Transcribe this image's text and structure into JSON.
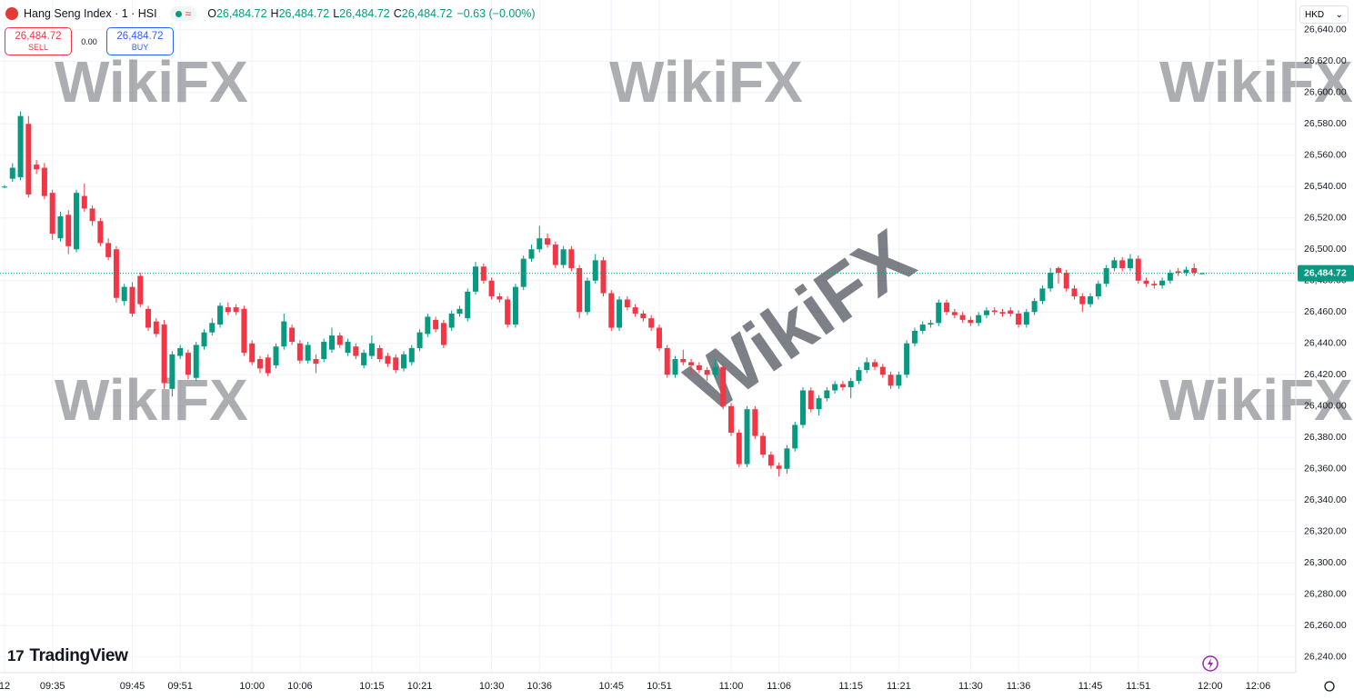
{
  "header": {
    "title": "Hang Seng Index · 1 · HSI",
    "open_key": "O",
    "open": "26,484.72",
    "high_key": "H",
    "high": "26,484.72",
    "low_key": "L",
    "low": "26,484.72",
    "close_key": "C",
    "close": "26,484.72",
    "change": "−0.63 (−0.00%)",
    "sell_price": "26,484.72",
    "sell_label": "SELL",
    "spread": "0.00",
    "buy_price": "26,484.72",
    "buy_label": "BUY",
    "currency": "HKD",
    "brand": "TradingView",
    "watermark": "WikiFX"
  },
  "chart_data": {
    "type": "candlestick",
    "categories": [
      "12",
      null,
      null,
      null,
      null,
      null,
      "09:35",
      null,
      null,
      null,
      null,
      null,
      null,
      null,
      null,
      null,
      "09:45",
      null,
      null,
      null,
      null,
      null,
      "09:51",
      null,
      null,
      null,
      null,
      null,
      null,
      null,
      null,
      "10:00",
      null,
      null,
      null,
      null,
      null,
      "10:06",
      null,
      null,
      null,
      null,
      null,
      null,
      null,
      null,
      "10:15",
      null,
      null,
      null,
      null,
      null,
      "10:21",
      null,
      null,
      null,
      null,
      null,
      null,
      null,
      null,
      "10:30",
      null,
      null,
      null,
      null,
      null,
      "10:36",
      null,
      null,
      null,
      null,
      null,
      null,
      null,
      null,
      "10:45",
      null,
      null,
      null,
      null,
      null,
      "10:51",
      null,
      null,
      null,
      null,
      null,
      null,
      null,
      null,
      "11:00",
      null,
      null,
      null,
      null,
      null,
      "11:06",
      null,
      null,
      null,
      null,
      null,
      null,
      null,
      null,
      "11:15",
      null,
      null,
      null,
      null,
      null,
      "11:21",
      null,
      null,
      null,
      null,
      null,
      null,
      null,
      null,
      "11:30",
      null,
      null,
      null,
      null,
      null,
      "11:36",
      null,
      null,
      null,
      null,
      null,
      null,
      null,
      null,
      "11:45",
      null,
      null,
      null,
      null,
      null,
      "11:51",
      null,
      null,
      null,
      null,
      null,
      null,
      null,
      null,
      "12:00",
      null,
      null,
      null,
      null,
      null,
      "12:06"
    ],
    "open": [
      26540,
      26545,
      26546,
      26580,
      26554,
      26552,
      26536,
      26507,
      26522,
      26500,
      26534,
      26526,
      26518,
      26504,
      26500,
      26467,
      26476,
      26483,
      26462,
      26454,
      26452,
      26411,
      26432,
      26434,
      26418,
      26438,
      26447,
      26452,
      26463,
      26463,
      26462,
      26440,
      26430,
      26431,
      26426,
      26438,
      26450,
      26440,
      26429,
      26430,
      26430,
      26436,
      26445,
      26434,
      26438,
      26426,
      26432,
      26437,
      26432,
      26431,
      26424,
      26428,
      26437,
      26446,
      26455,
      26453,
      26450,
      26459,
      26456,
      26473,
      26489,
      26480,
      26470,
      26468,
      26452,
      26476,
      26494,
      26500,
      26507,
      26503,
      26490,
      26500,
      26488,
      26460,
      26480,
      26493,
      26472,
      26450,
      26468,
      26463,
      26459,
      26456,
      26450,
      26437,
      26420,
      26430,
      26428,
      26426,
      26423,
      26420,
      26425,
      26400,
      26383,
      26363,
      26398,
      26381,
      26369,
      26362,
      26360,
      26373,
      26388,
      26410,
      26398,
      26405,
      26410,
      26414,
      26412,
      26416,
      26423,
      26428,
      26425,
      26420,
      26413,
      26420,
      26440,
      26448,
      26452,
      26453,
      26466,
      26460,
      26458,
      26455,
      26453,
      26458,
      26461,
      26460,
      26461,
      26459,
      26452,
      26460,
      26467,
      26475,
      26488,
      26485,
      26475,
      26470,
      26465,
      26470,
      26478,
      26488,
      26493,
      26488,
      26494,
      26480,
      26478,
      26477,
      26480,
      26486,
      26485,
      26488,
      26484.72,
      null,
      null,
      null,
      null,
      null,
      null,
      null
    ],
    "high": [
      26541,
      26555,
      26588,
      26585,
      26557,
      26555,
      26538,
      26524,
      26525,
      26538,
      26542,
      26528,
      26520,
      26507,
      26502,
      26478,
      26479,
      26485,
      26464,
      26456,
      26455,
      26435,
      26439,
      26436,
      26441,
      26449,
      26456,
      26466,
      26466,
      26465,
      26464,
      26442,
      26432,
      26433,
      26440,
      26459,
      26452,
      26442,
      26441,
      26433,
      26443,
      26450,
      26447,
      26443,
      26440,
      26436,
      26445,
      26439,
      26434,
      26433,
      26435,
      26439,
      26449,
      26459,
      26457,
      26455,
      26461,
      26464,
      26475,
      26492,
      26491,
      26482,
      26472,
      26470,
      26478,
      26496,
      26503,
      26515,
      26510,
      26505,
      26502,
      26502,
      26490,
      26482,
      26497,
      26495,
      26474,
      26470,
      26470,
      26465,
      26461,
      26458,
      26452,
      26439,
      26432,
      26436,
      26430,
      26428,
      26425,
      26430,
      26427,
      26402,
      26385,
      26400,
      26400,
      26383,
      26371,
      26364,
      26375,
      26390,
      26412,
      26412,
      26407,
      26412,
      26416,
      26416,
      26418,
      26425,
      26431,
      26430,
      26427,
      26422,
      26422,
      26442,
      26450,
      26454,
      26455,
      26468,
      26468,
      26462,
      26460,
      26457,
      26460,
      26463,
      26463,
      26462,
      26463,
      26461,
      26462,
      26469,
      26477,
      26488,
      26489,
      26487,
      26477,
      26472,
      26472,
      26480,
      26490,
      26495,
      26495,
      26497,
      26496,
      26482,
      26480,
      26482,
      26487,
      26488,
      26489,
      26491,
      26485,
      null,
      null,
      null,
      null,
      null,
      null,
      null
    ],
    "low": [
      26539,
      26543,
      26544,
      26533,
      26548,
      26532,
      26506,
      26505,
      26497,
      26498,
      26524,
      26515,
      26502,
      26493,
      26466,
      26464,
      26457,
      26463,
      26448,
      26444,
      26411,
      26406,
      26430,
      26417,
      26416,
      26436,
      26445,
      26450,
      26458,
      26458,
      26432,
      26426,
      26421,
      26419,
      26424,
      26436,
      26439,
      26427,
      26427,
      26421,
      26428,
      26434,
      26437,
      26432,
      26430,
      26424,
      26430,
      26428,
      26425,
      26421,
      26422,
      26426,
      26435,
      26444,
      26447,
      26437,
      26448,
      26457,
      26454,
      26471,
      26478,
      26468,
      26466,
      26450,
      26450,
      26474,
      26492,
      26498,
      26501,
      26488,
      26488,
      26486,
      26456,
      26458,
      26478,
      26470,
      26448,
      26448,
      26461,
      26457,
      26454,
      26448,
      26435,
      26418,
      26418,
      26426,
      26420,
      26421,
      26416,
      26418,
      26398,
      26381,
      26361,
      26361,
      26379,
      26367,
      26360,
      26355,
      26357,
      26371,
      26386,
      26396,
      26394,
      26403,
      26408,
      26410,
      26405,
      26414,
      26421,
      26423,
      26418,
      26411,
      26411,
      26418,
      26438,
      26446,
      26450,
      26451,
      26458,
      26456,
      26453,
      26451,
      26451,
      26456,
      26458,
      26457,
      26457,
      26450,
      26450,
      26458,
      26465,
      26473,
      26478,
      26473,
      26468,
      26460,
      26463,
      26468,
      26476,
      26486,
      26486,
      26486,
      26478,
      26476,
      26475,
      26475,
      26478,
      26483,
      26483,
      26483,
      26484,
      null,
      null,
      null,
      null,
      null,
      null,
      null
    ],
    "close": [
      26540,
      26552,
      26585,
      26535,
      26551,
      26534,
      26510,
      26521,
      26502,
      26536,
      26526,
      26518,
      26504,
      26495,
      26469,
      26476,
      26459,
      26465,
      26450,
      26446,
      26415,
      26433,
      26437,
      26420,
      26439,
      26447,
      26453,
      26464,
      26460,
      26460,
      26434,
      26428,
      26424,
      26421,
      26438,
      26454,
      26441,
      26429,
      26439,
      26427,
      26441,
      26445,
      26439,
      26441,
      26432,
      26434,
      26440,
      26430,
      26427,
      26423,
      26433,
      26437,
      26447,
      26457,
      26449,
      26439,
      26459,
      26462,
      26473,
      26489,
      26480,
      26470,
      26468,
      26452,
      26476,
      26494,
      26500,
      26507,
      26503,
      26490,
      26500,
      26488,
      26460,
      26480,
      26493,
      26472,
      26450,
      26468,
      26463,
      26459,
      26456,
      26450,
      26437,
      26420,
      26430,
      26428,
      26426,
      26423,
      26420,
      26425,
      26400,
      26383,
      26363,
      26398,
      26381,
      26369,
      26362,
      26360,
      26373,
      26388,
      26410,
      26398,
      26405,
      26410,
      26414,
      26412,
      26416,
      26423,
      26428,
      26425,
      26420,
      26413,
      26420,
      26440,
      26448,
      26452,
      26453,
      26466,
      26460,
      26458,
      26455,
      26453,
      26458,
      26461,
      26460,
      26459,
      26459,
      26452,
      26460,
      26467,
      26475,
      26485,
      26485,
      26475,
      26470,
      26465,
      26470,
      26478,
      26488,
      26493,
      26488,
      26494,
      26480,
      26478,
      26477,
      26480,
      26485,
      26485,
      26487,
      26485,
      26484.72,
      null,
      null,
      null,
      null,
      null,
      null,
      null
    ],
    "up_color": "#089981",
    "down_color": "#f23645",
    "last_price": {
      "value": 26484.72,
      "label": "26,484.72"
    },
    "ylim": [
      26230,
      26659
    ],
    "yticks": [
      {
        "value": 26240,
        "label": "26,240.00"
      },
      {
        "value": 26260,
        "label": "26,260.00"
      },
      {
        "value": 26280,
        "label": "26,280.00"
      },
      {
        "value": 26300,
        "label": "26,300.00"
      },
      {
        "value": 26320,
        "label": "26,320.00"
      },
      {
        "value": 26340,
        "label": "26,340.00"
      },
      {
        "value": 26360,
        "label": "26,360.00"
      },
      {
        "value": 26380,
        "label": "26,380.00"
      },
      {
        "value": 26400,
        "label": "26,400.00"
      },
      {
        "value": 26420,
        "label": "26,420.00"
      },
      {
        "value": 26440,
        "label": "26,440.00"
      },
      {
        "value": 26460,
        "label": "26,460.00"
      },
      {
        "value": 26480,
        "label": "26,480.00"
      },
      {
        "value": 26500,
        "label": "26,500.00"
      },
      {
        "value": 26520,
        "label": "26,520.00"
      },
      {
        "value": 26540,
        "label": "26,540.00"
      },
      {
        "value": 26560,
        "label": "26,560.00"
      },
      {
        "value": 26580,
        "label": "26,580.00"
      },
      {
        "value": 26600,
        "label": "26,600.00"
      },
      {
        "value": 26620,
        "label": "26,620.00"
      },
      {
        "value": 26640,
        "label": "26,640.00"
      }
    ],
    "grid": true
  }
}
